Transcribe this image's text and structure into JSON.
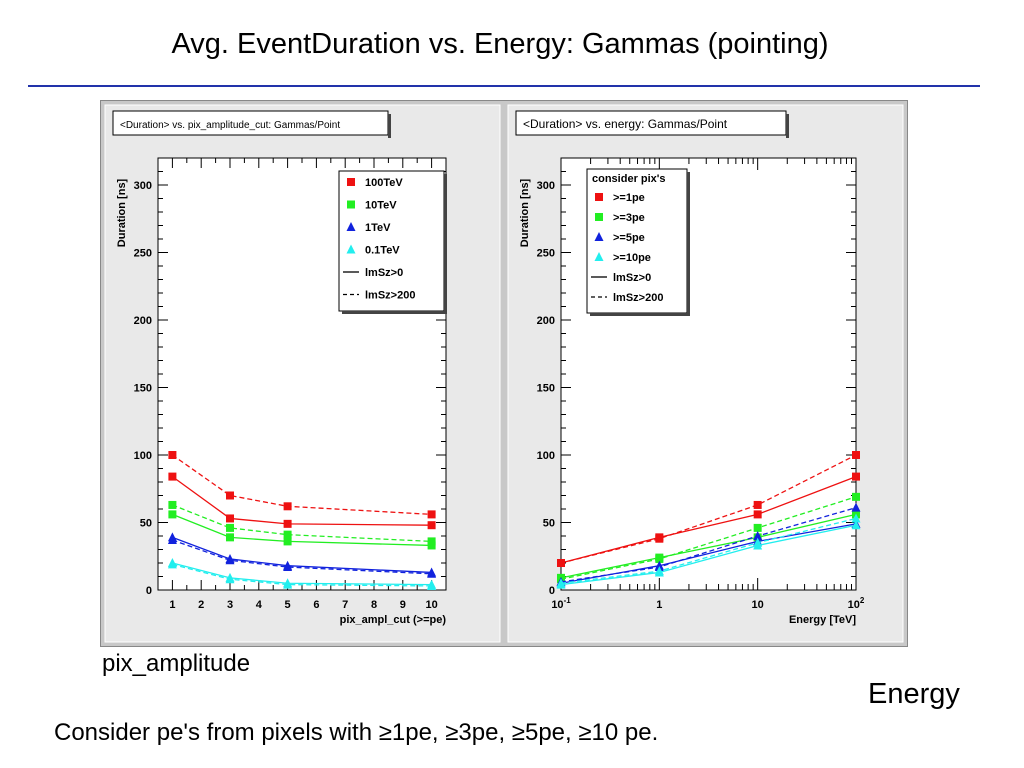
{
  "slide": {
    "title": "Avg. EventDuration vs. Energy:  Gammas (pointing)",
    "left_caption": "pix_amplitude",
    "right_caption": "Energy",
    "footer": "Consider pe's from pixels with  ≥1pe,  ≥3pe, ≥5pe, ≥10 pe.",
    "rule_color": "#2233aa"
  },
  "chart_data": [
    {
      "type": "line",
      "title": "<Duration> vs. pix_amplitude_cut: Gammas/Point",
      "xlabel": "pix_ampl_cut (>=pe)",
      "ylabel": "Duration [ns]",
      "xscale": "linear",
      "xlim": [
        0.5,
        10.5
      ],
      "ylim": [
        0,
        320
      ],
      "xticks": [
        1,
        2,
        3,
        4,
        5,
        6,
        7,
        8,
        9,
        10
      ],
      "xtick_labels": [
        "1",
        "2",
        "3",
        "4",
        "5",
        "6",
        "7",
        "8",
        "9",
        "10"
      ],
      "yticks": [
        0,
        50,
        100,
        150,
        200,
        250,
        300
      ],
      "legend_position": "top-right",
      "legend_title": "",
      "legend": [
        {
          "label": "100TeV",
          "marker": "square",
          "color": "#ee1111"
        },
        {
          "label": "10TeV",
          "marker": "square",
          "color": "#22ee22"
        },
        {
          "label": "1TeV",
          "marker": "triangle",
          "color": "#1122dd"
        },
        {
          "label": "0.1TeV",
          "marker": "triangle",
          "color": "#22eeee"
        },
        {
          "label": "lmSz>0",
          "line": "solid",
          "color": "#000000"
        },
        {
          "label": "lmSz>200",
          "line": "dashed",
          "color": "#000000"
        }
      ],
      "x": [
        1,
        3,
        5,
        10
      ],
      "series": [
        {
          "color": "#ee1111",
          "marker": "square",
          "dash": false,
          "values": [
            84,
            53,
            49,
            48
          ]
        },
        {
          "color": "#ee1111",
          "marker": "square",
          "dash": true,
          "values": [
            100,
            70,
            62,
            56
          ]
        },
        {
          "color": "#22ee22",
          "marker": "square",
          "dash": false,
          "values": [
            56,
            39,
            36,
            33
          ]
        },
        {
          "color": "#22ee22",
          "marker": "square",
          "dash": true,
          "values": [
            63,
            46,
            41,
            36
          ]
        },
        {
          "color": "#1122dd",
          "marker": "triangle",
          "dash": false,
          "values": [
            39,
            23,
            18,
            13
          ]
        },
        {
          "color": "#1122dd",
          "marker": "triangle",
          "dash": true,
          "values": [
            37,
            22,
            17,
            12
          ]
        },
        {
          "color": "#22eeee",
          "marker": "triangle",
          "dash": false,
          "values": [
            20,
            9,
            5,
            4
          ]
        },
        {
          "color": "#22eeee",
          "marker": "triangle",
          "dash": true,
          "values": [
            19,
            8,
            4,
            3
          ]
        }
      ]
    },
    {
      "type": "line",
      "title": "<Duration> vs. energy: Gammas/Point",
      "xlabel": "Energy [TeV]",
      "ylabel": "Duration [ns]",
      "xscale": "log",
      "xlim": [
        0.1,
        100
      ],
      "ylim": [
        0,
        320
      ],
      "xticks": [
        0.1,
        1,
        10,
        100
      ],
      "xtick_labels": [
        "10^-1",
        "1",
        "10",
        "10^2"
      ],
      "yticks": [
        0,
        50,
        100,
        150,
        200,
        250,
        300
      ],
      "legend_position": "top-left",
      "legend_title": "consider pix's",
      "legend": [
        {
          "label": ">=1pe",
          "marker": "square",
          "color": "#ee1111"
        },
        {
          "label": ">=3pe",
          "marker": "square",
          "color": "#22ee22"
        },
        {
          "label": ">=5pe",
          "marker": "triangle",
          "color": "#1122dd"
        },
        {
          "label": ">=10pe",
          "marker": "triangle",
          "color": "#22eeee"
        },
        {
          "label": "lmSz>0",
          "line": "solid",
          "color": "#000000"
        },
        {
          "label": "lmSz>200",
          "line": "dashed",
          "color": "#000000"
        }
      ],
      "x": [
        0.1,
        1,
        10,
        100
      ],
      "series": [
        {
          "color": "#ee1111",
          "marker": "square",
          "dash": false,
          "values": [
            20,
            39,
            56,
            84
          ]
        },
        {
          "color": "#ee1111",
          "marker": "square",
          "dash": true,
          "values": [
            20,
            38,
            63,
            100
          ]
        },
        {
          "color": "#22ee22",
          "marker": "square",
          "dash": false,
          "values": [
            9,
            24,
            39,
            56
          ]
        },
        {
          "color": "#22ee22",
          "marker": "square",
          "dash": true,
          "values": [
            8,
            23,
            46,
            69
          ]
        },
        {
          "color": "#1122dd",
          "marker": "triangle",
          "dash": false,
          "values": [
            5,
            18,
            36,
            49
          ]
        },
        {
          "color": "#1122dd",
          "marker": "triangle",
          "dash": true,
          "values": [
            6,
            17,
            40,
            61
          ]
        },
        {
          "color": "#22eeee",
          "marker": "triangle",
          "dash": false,
          "values": [
            4,
            13,
            33,
            48
          ]
        },
        {
          "color": "#22eeee",
          "marker": "triangle",
          "dash": true,
          "values": [
            5,
            14,
            35,
            53
          ]
        }
      ]
    }
  ]
}
